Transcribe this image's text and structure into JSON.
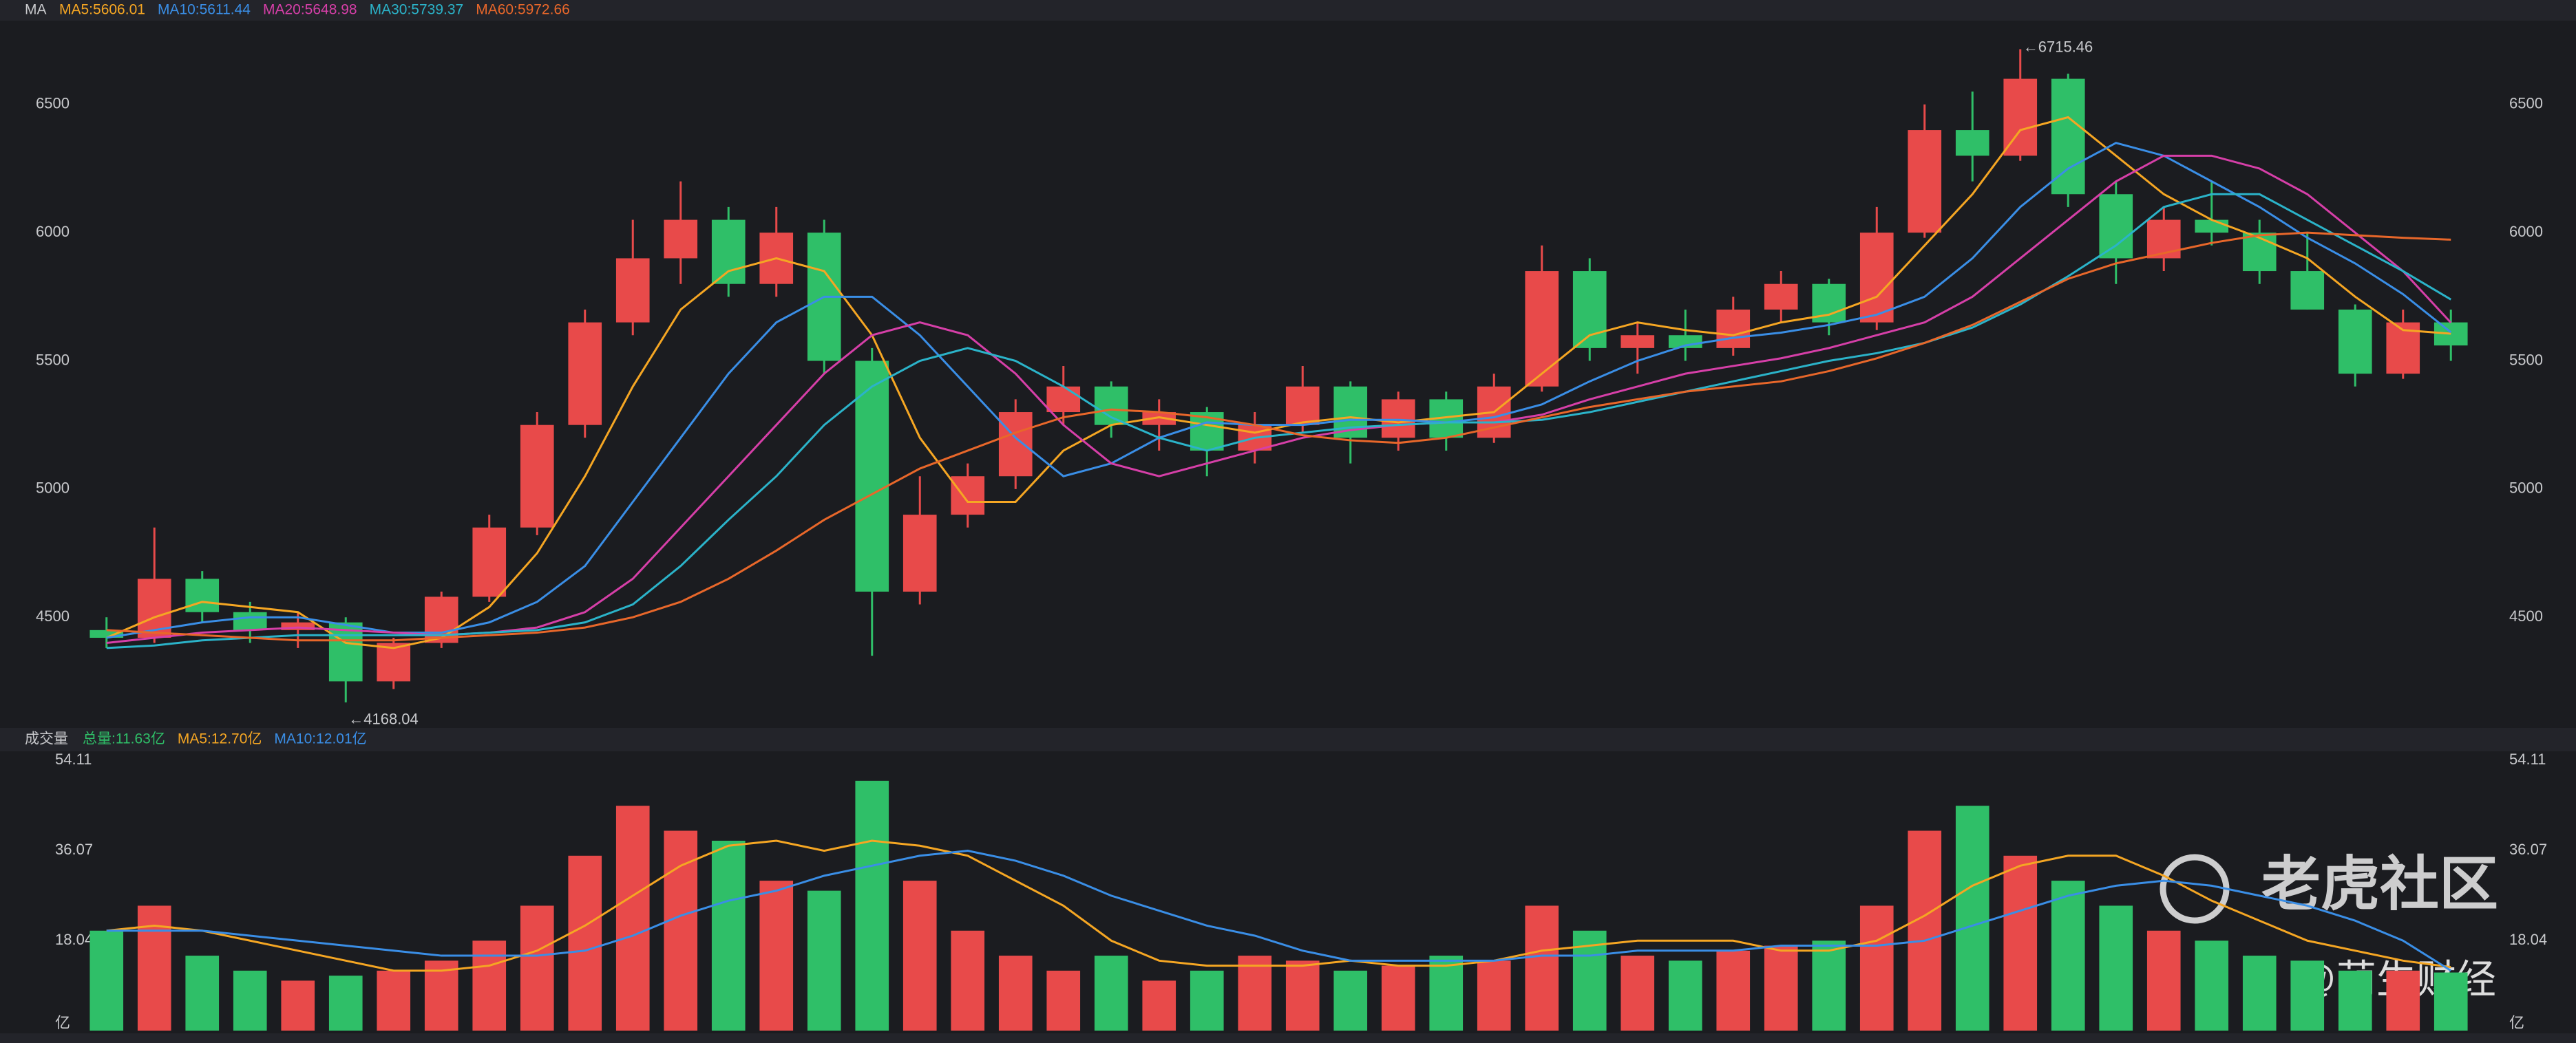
{
  "chart_data": {
    "type": "candlestick",
    "title": "MA",
    "candles": [
      {
        "open": 4450,
        "high": 4500,
        "low": 4380,
        "close": 4420
      },
      {
        "open": 4420,
        "high": 4850,
        "low": 4400,
        "close": 4650
      },
      {
        "open": 4650,
        "high": 4680,
        "low": 4480,
        "close": 4520
      },
      {
        "open": 4520,
        "high": 4560,
        "low": 4400,
        "close": 4450
      },
      {
        "open": 4450,
        "high": 4520,
        "low": 4380,
        "close": 4480
      },
      {
        "open": 4480,
        "high": 4500,
        "low": 4168.04,
        "close": 4250
      },
      {
        "open": 4250,
        "high": 4420,
        "low": 4220,
        "close": 4400
      },
      {
        "open": 4400,
        "high": 4600,
        "low": 4380,
        "close": 4580
      },
      {
        "open": 4580,
        "high": 4900,
        "low": 4560,
        "close": 4850
      },
      {
        "open": 4850,
        "high": 5300,
        "low": 4820,
        "close": 5250
      },
      {
        "open": 5250,
        "high": 5700,
        "low": 5200,
        "close": 5650
      },
      {
        "open": 5650,
        "high": 6050,
        "low": 5600,
        "close": 5900
      },
      {
        "open": 5900,
        "high": 6200,
        "low": 5800,
        "close": 6050
      },
      {
        "open": 6050,
        "high": 6100,
        "low": 5750,
        "close": 5800
      },
      {
        "open": 5800,
        "high": 6100,
        "low": 5750,
        "close": 6000
      },
      {
        "open": 6000,
        "high": 6050,
        "low": 5450,
        "close": 5500
      },
      {
        "open": 5500,
        "high": 5550,
        "low": 4350,
        "close": 4600
      },
      {
        "open": 4600,
        "high": 5050,
        "low": 4550,
        "close": 4900
      },
      {
        "open": 4900,
        "high": 5100,
        "low": 4850,
        "close": 5050
      },
      {
        "open": 5050,
        "high": 5350,
        "low": 5000,
        "close": 5300
      },
      {
        "open": 5300,
        "high": 5480,
        "low": 5250,
        "close": 5400
      },
      {
        "open": 5400,
        "high": 5420,
        "low": 5200,
        "close": 5250
      },
      {
        "open": 5250,
        "high": 5350,
        "low": 5150,
        "close": 5300
      },
      {
        "open": 5300,
        "high": 5320,
        "low": 5050,
        "close": 5150
      },
      {
        "open": 5150,
        "high": 5300,
        "low": 5100,
        "close": 5250
      },
      {
        "open": 5250,
        "high": 5480,
        "low": 5220,
        "close": 5400
      },
      {
        "open": 5400,
        "high": 5420,
        "low": 5100,
        "close": 5200
      },
      {
        "open": 5200,
        "high": 5380,
        "low": 5150,
        "close": 5350
      },
      {
        "open": 5350,
        "high": 5380,
        "low": 5150,
        "close": 5200
      },
      {
        "open": 5200,
        "high": 5450,
        "low": 5180,
        "close": 5400
      },
      {
        "open": 5400,
        "high": 5950,
        "low": 5380,
        "close": 5850
      },
      {
        "open": 5850,
        "high": 5900,
        "low": 5500,
        "close": 5550
      },
      {
        "open": 5550,
        "high": 5650,
        "low": 5450,
        "close": 5600
      },
      {
        "open": 5600,
        "high": 5700,
        "low": 5500,
        "close": 5550
      },
      {
        "open": 5550,
        "high": 5750,
        "low": 5520,
        "close": 5700
      },
      {
        "open": 5700,
        "high": 5850,
        "low": 5650,
        "close": 5800
      },
      {
        "open": 5800,
        "high": 5820,
        "low": 5600,
        "close": 5650
      },
      {
        "open": 5650,
        "high": 6100,
        "low": 5620,
        "close": 6000
      },
      {
        "open": 6000,
        "high": 6500,
        "low": 5980,
        "close": 6400
      },
      {
        "open": 6400,
        "high": 6550,
        "low": 6200,
        "close": 6300
      },
      {
        "open": 6300,
        "high": 6715.46,
        "low": 6280,
        "close": 6600
      },
      {
        "open": 6600,
        "high": 6620,
        "low": 6100,
        "close": 6150
      },
      {
        "open": 6150,
        "high": 6200,
        "low": 5800,
        "close": 5900
      },
      {
        "open": 5900,
        "high": 6100,
        "low": 5850,
        "close": 6050
      },
      {
        "open": 6050,
        "high": 6200,
        "low": 5950,
        "close": 6000
      },
      {
        "open": 6000,
        "high": 6050,
        "low": 5800,
        "close": 5850
      },
      {
        "open": 5850,
        "high": 6000,
        "low": 5700,
        "close": 5700
      },
      {
        "open": 5700,
        "high": 5720,
        "low": 5400,
        "close": 5450
      },
      {
        "open": 5450,
        "high": 5700,
        "low": 5430,
        "close": 5650
      },
      {
        "open": 5650,
        "high": 5700,
        "low": 5500,
        "close": 5560
      }
    ],
    "up_color": "#e84a4a",
    "down_color": "#2fbf68",
    "series": [
      {
        "name": "MA5",
        "legend": "MA5:5606.01",
        "color": "#f5a623",
        "values": [
          4420,
          4500,
          4560,
          4540,
          4520,
          4400,
          4380,
          4420,
          4540,
          4750,
          5050,
          5400,
          5700,
          5850,
          5900,
          5850,
          5600,
          5200,
          4950,
          4950,
          5150,
          5250,
          5280,
          5250,
          5220,
          5260,
          5280,
          5260,
          5280,
          5300,
          5450,
          5600,
          5650,
          5620,
          5600,
          5650,
          5680,
          5750,
          5950,
          6150,
          6400,
          6450,
          6300,
          6150,
          6050,
          5980,
          5900,
          5750,
          5620,
          5606.01
        ]
      },
      {
        "name": "MA10",
        "legend": "MA10:5611.44",
        "color": "#3a8ee6",
        "values": [
          4420,
          4450,
          4480,
          4500,
          4500,
          4470,
          4440,
          4440,
          4480,
          4560,
          4700,
          4950,
          5200,
          5450,
          5650,
          5750,
          5750,
          5600,
          5400,
          5200,
          5050,
          5100,
          5200,
          5260,
          5250,
          5250,
          5270,
          5270,
          5260,
          5280,
          5330,
          5420,
          5500,
          5560,
          5590,
          5610,
          5640,
          5680,
          5750,
          5900,
          6100,
          6250,
          6350,
          6300,
          6200,
          6100,
          5980,
          5880,
          5760,
          5611.44
        ]
      },
      {
        "name": "MA20",
        "legend": "MA20:5648.98",
        "color": "#d63fa8",
        "values": [
          4400,
          4420,
          4440,
          4450,
          4460,
          4450,
          4440,
          4430,
          4440,
          4460,
          4520,
          4650,
          4850,
          5050,
          5250,
          5450,
          5600,
          5650,
          5600,
          5450,
          5250,
          5100,
          5050,
          5100,
          5150,
          5200,
          5230,
          5250,
          5260,
          5260,
          5290,
          5350,
          5400,
          5450,
          5480,
          5510,
          5550,
          5600,
          5650,
          5750,
          5900,
          6050,
          6200,
          6300,
          6300,
          6250,
          6150,
          6000,
          5850,
          5648.98
        ]
      },
      {
        "name": "MA30",
        "legend": "MA30:5739.37",
        "color": "#2bb3c9",
        "values": [
          4380,
          4390,
          4410,
          4420,
          4430,
          4430,
          4430,
          4430,
          4440,
          4450,
          4480,
          4550,
          4700,
          4880,
          5050,
          5250,
          5400,
          5500,
          5550,
          5500,
          5400,
          5280,
          5200,
          5150,
          5200,
          5220,
          5240,
          5250,
          5260,
          5260,
          5270,
          5300,
          5340,
          5380,
          5420,
          5460,
          5500,
          5530,
          5570,
          5630,
          5720,
          5830,
          5950,
          6100,
          6150,
          6150,
          6050,
          5950,
          5850,
          5739.37
        ]
      },
      {
        "name": "MA60",
        "legend": "MA60:5972.66",
        "color": "#e8672a",
        "values": [
          4450,
          4440,
          4430,
          4420,
          4410,
          4410,
          4410,
          4420,
          4430,
          4440,
          4460,
          4500,
          4560,
          4650,
          4760,
          4880,
          4980,
          5080,
          5150,
          5220,
          5280,
          5310,
          5300,
          5280,
          5250,
          5210,
          5190,
          5180,
          5200,
          5240,
          5280,
          5320,
          5350,
          5380,
          5400,
          5420,
          5460,
          5510,
          5570,
          5640,
          5730,
          5820,
          5880,
          5920,
          5960,
          5990,
          6000,
          5990,
          5980,
          5972.66
        ]
      }
    ],
    "ylim": [
      4090,
      6800
    ],
    "yticks": [
      4500,
      5000,
      5500,
      6000,
      6500
    ],
    "grid": false,
    "annotations": [
      {
        "text": "←6715.46"
      },
      {
        "text": "←4168.04"
      }
    ],
    "volume": {
      "title": "成交量",
      "total_label": "总量:11.63亿",
      "values": [
        20,
        25,
        15,
        12,
        10,
        11,
        12,
        14,
        18,
        25,
        35,
        45,
        40,
        38,
        30,
        28,
        50,
        30,
        20,
        15,
        12,
        15,
        10,
        12,
        15,
        14,
        12,
        13,
        15,
        14,
        25,
        20,
        15,
        14,
        16,
        17,
        18,
        25,
        40,
        45,
        35,
        30,
        25,
        20,
        18,
        15,
        14,
        12,
        12,
        11.63
      ],
      "ylim": [
        0,
        54.11
      ],
      "yticks": [
        {
          "value": 0,
          "label": "亿"
        },
        18.04,
        36.07,
        54.11
      ],
      "series": [
        {
          "name": "MA5",
          "legend": "MA5:12.70亿",
          "color": "#f5a623",
          "values": [
            20,
            21,
            20,
            18,
            16,
            14,
            12,
            12,
            13,
            16,
            21,
            27,
            33,
            37,
            38,
            36,
            38,
            37,
            35,
            30,
            25,
            18,
            14,
            13,
            13,
            13,
            14,
            13,
            13,
            14,
            16,
            17,
            18,
            18,
            18,
            16,
            16,
            18,
            23,
            29,
            33,
            35,
            35,
            31,
            26,
            22,
            18,
            16,
            14,
            12.7
          ]
        },
        {
          "name": "MA10",
          "legend": "MA10:12.01亿",
          "color": "#3a8ee6",
          "values": [
            20,
            20,
            20,
            19,
            18,
            17,
            16,
            15,
            15,
            15,
            16,
            19,
            23,
            26,
            28,
            31,
            33,
            35,
            36,
            34,
            31,
            27,
            24,
            21,
            19,
            16,
            14,
            14,
            14,
            14,
            15,
            15,
            16,
            16,
            16,
            17,
            17,
            17,
            18,
            21,
            24,
            27,
            29,
            30,
            29,
            27,
            25,
            22,
            18,
            12.01
          ]
        }
      ]
    },
    "watermark": "老虎社区",
    "author": "@萌生财经"
  }
}
